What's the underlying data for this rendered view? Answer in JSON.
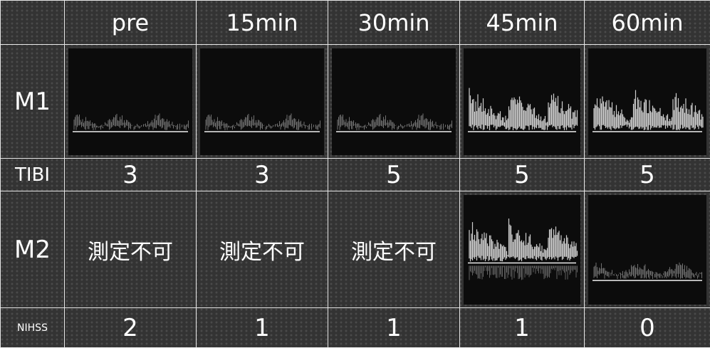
{
  "table": {
    "header": [
      "pre",
      "15min",
      "30min",
      "45min",
      "60min"
    ],
    "rows": [
      {
        "label": "M1"
      },
      {
        "label": "TIBI",
        "cells": [
          3,
          3,
          5,
          5,
          5
        ]
      },
      {
        "label": "M2",
        "cells": [
          "測定不可",
          "測定不可",
          "測定不可"
        ]
      },
      {
        "label": "NIHSS",
        "cells": [
          2,
          1,
          1,
          1,
          0
        ]
      }
    ]
  }
}
